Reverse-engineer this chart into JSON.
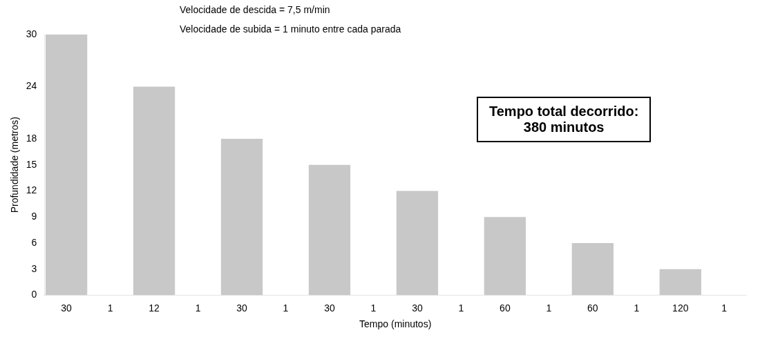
{
  "chart_data": {
    "type": "bar",
    "xlabel": "Tempo (minutos)",
    "ylabel": "Profundidade (metros)",
    "categories": [
      "30",
      "1",
      "12",
      "1",
      "30",
      "1",
      "30",
      "1",
      "30",
      "1",
      "60",
      "1",
      "60",
      "1",
      "120",
      "1"
    ],
    "values": [
      30,
      null,
      24,
      null,
      18,
      null,
      15,
      null,
      12,
      null,
      9,
      null,
      6,
      null,
      3,
      null
    ],
    "color": "#c8c8c8",
    "ylim": [
      0,
      30
    ],
    "yticks": [
      0,
      3,
      6,
      9,
      12,
      15,
      18,
      24,
      30
    ],
    "grid": false,
    "legend": false,
    "annotations": [
      "Velocidade de descida = 7,5 m/min",
      "Velocidade de subida = 1 minuto entre cada parada",
      "Tempo total decorrido:\n380 minutos"
    ]
  }
}
